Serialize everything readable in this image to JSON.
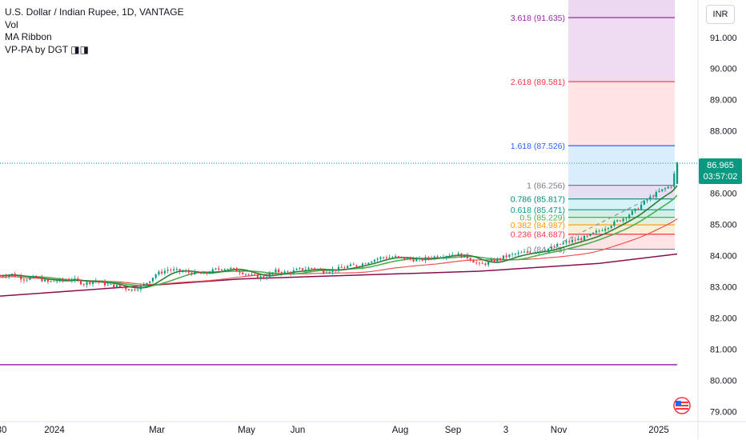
{
  "legend": {
    "symbol": "U.S. Dollar / Indian Rupee, 1D, VANTAGE",
    "indicators": [
      "Vol",
      "MA Ribbon",
      "VP-PA by DGT ◨◨"
    ]
  },
  "currency_button": "INR",
  "last_price": {
    "value": "86.965",
    "countdown": "03:57:02",
    "color": "#089981"
  },
  "colors": {
    "up": "#089981",
    "down": "#f23645",
    "ma_fast": "#2e7d32",
    "ma_mid": "#4caf50",
    "ma_slow": "#ef5350",
    "ma_long": "#880e4f",
    "purple_line": "#9c27b0"
  },
  "chart_data": {
    "type": "candlestick",
    "y_axis": {
      "ticks": [
        "79.000",
        "80.000",
        "81.000",
        "82.000",
        "83.000",
        "84.000",
        "85.000",
        "86.000",
        "87.000",
        "88.000",
        "89.000",
        "90.000",
        "91.000"
      ],
      "ylim": [
        78.7,
        92.2
      ],
      "side": "right"
    },
    "x_axis": {
      "ticks": [
        "30",
        "2024",
        "Mar",
        "May",
        "Jun",
        "Aug",
        "Sep",
        "3",
        "Nov",
        "2025"
      ]
    },
    "fibonacci": {
      "levels": [
        {
          "ratio": "0",
          "price": 84.203,
          "label": "0 (84.203)",
          "color": "#787b86"
        },
        {
          "ratio": "0.236",
          "price": 84.687,
          "label": "0.236 (84.687)",
          "color": "#f23645"
        },
        {
          "ratio": "0.382",
          "price": 84.987,
          "label": "0.382 (84.987)",
          "color": "#ff9800"
        },
        {
          "ratio": "0.5",
          "price": 85.229,
          "label": "0.5 (85.229)",
          "color": "#4caf50"
        },
        {
          "ratio": "0.618",
          "price": 85.471,
          "label": "0.618 (85.471)",
          "color": "#089981"
        },
        {
          "ratio": "0.786",
          "price": 85.817,
          "label": "0.786 (85.817)",
          "color": "#00897b"
        },
        {
          "ratio": "1",
          "price": 86.256,
          "label": "1 (86.256)",
          "color": "#787b86"
        },
        {
          "ratio": "1.618",
          "price": 87.526,
          "label": "1.618 (87.526)",
          "color": "#2962ff"
        },
        {
          "ratio": "2.618",
          "price": 89.581,
          "label": "2.618 (89.581)",
          "color": "#f23645"
        },
        {
          "ratio": "3.618",
          "price": 91.635,
          "label": "3.618 (91.635)",
          "color": "#9c27b0"
        }
      ]
    },
    "purple_horizontal_line": 80.5,
    "price_path": [
      [
        0,
        83.35
      ],
      [
        2,
        83.4
      ],
      [
        4,
        83.25
      ],
      [
        6,
        83.3
      ],
      [
        8,
        83.15
      ],
      [
        10,
        83.2
      ],
      [
        12,
        83.25
      ],
      [
        14,
        83.1
      ],
      [
        16,
        83.2
      ],
      [
        18,
        83.05
      ],
      [
        20,
        83.0
      ],
      [
        22,
        82.9
      ],
      [
        24,
        83.05
      ],
      [
        26,
        83.4
      ],
      [
        28,
        83.55
      ],
      [
        30,
        83.5
      ],
      [
        32,
        83.45
      ],
      [
        34,
        83.4
      ],
      [
        36,
        83.55
      ],
      [
        38,
        83.6
      ],
      [
        40,
        83.5
      ],
      [
        42,
        83.35
      ],
      [
        44,
        83.3
      ],
      [
        46,
        83.5
      ],
      [
        48,
        83.45
      ],
      [
        50,
        83.55
      ],
      [
        52,
        83.6
      ],
      [
        54,
        83.5
      ],
      [
        56,
        83.55
      ],
      [
        58,
        83.65
      ],
      [
        60,
        83.7
      ],
      [
        62,
        83.85
      ],
      [
        64,
        83.95
      ],
      [
        66,
        83.95
      ],
      [
        68,
        83.9
      ],
      [
        70,
        83.85
      ],
      [
        72,
        83.95
      ],
      [
        74,
        84.0
      ],
      [
        76,
        84.05
      ],
      [
        78,
        83.95
      ],
      [
        80,
        83.7
      ],
      [
        82,
        83.8
      ],
      [
        84,
        83.95
      ],
      [
        86,
        84.05
      ],
      [
        88,
        84.1
      ],
      [
        90,
        84.15
      ],
      [
        92,
        84.25
      ],
      [
        94,
        84.4
      ],
      [
        96,
        84.5
      ],
      [
        98,
        84.6
      ],
      [
        100,
        84.8
      ],
      [
        102,
        85.0
      ],
      [
        104,
        85.2
      ],
      [
        106,
        85.45
      ],
      [
        108,
        85.8
      ],
      [
        110,
        86.05
      ],
      [
        112,
        86.25
      ],
      [
        113,
        86.97
      ]
    ],
    "ma_long": [
      [
        0,
        82.7
      ],
      [
        40,
        83.25
      ],
      [
        80,
        83.5
      ],
      [
        100,
        83.75
      ],
      [
        113,
        84.05
      ]
    ]
  }
}
